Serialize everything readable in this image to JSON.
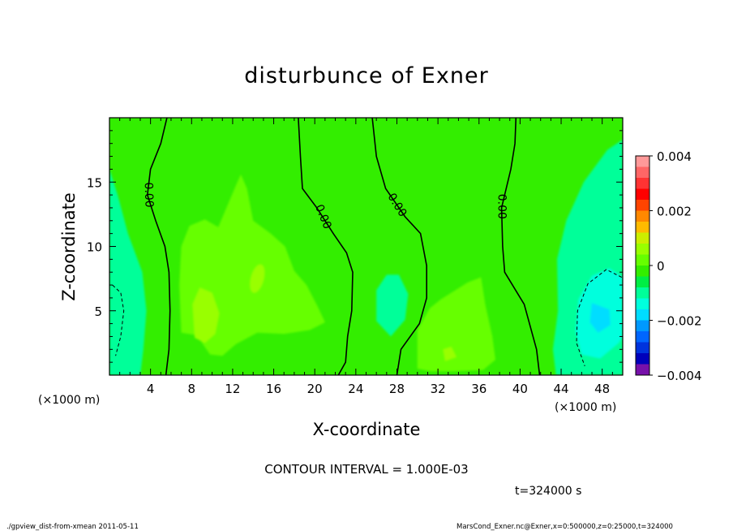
{
  "chart_data": {
    "type": "heatmap",
    "title": "disturbunce of Exner",
    "xlabel": "X-coordinate",
    "ylabel": "Z-coordinate",
    "x_unit_label": "(×1000 m)",
    "y_unit_label": "(×1000 m)",
    "xlim": [
      0,
      50
    ],
    "ylim": [
      0,
      20
    ],
    "x_ticks": [
      4,
      8,
      12,
      16,
      20,
      24,
      28,
      32,
      36,
      40,
      44,
      48
    ],
    "y_ticks": [
      5,
      10,
      15
    ],
    "contour_interval_text": "CONTOUR INTERVAL = 1.000E-03",
    "time_text": "t=324000 s",
    "contour_label": "0.00",
    "colorbar": {
      "ticks": [
        "0.004",
        "0.002",
        "0",
        "−0.002",
        "−0.004"
      ],
      "levels": [
        {
          "value": 0.004,
          "color": "#ff9999"
        },
        {
          "value": 0.0035,
          "color": "#ff6666"
        },
        {
          "value": 0.003,
          "color": "#ff3333"
        },
        {
          "value": 0.0025,
          "color": "#ff0000"
        },
        {
          "value": 0.002,
          "color": "#ff4400"
        },
        {
          "value": 0.0015,
          "color": "#ff8800"
        },
        {
          "value": 0.001,
          "color": "#ffbb00"
        },
        {
          "value": 0.0005,
          "color": "#ccee00"
        },
        {
          "value": 0.00025,
          "color": "#99ff00"
        },
        {
          "value": 0.0001,
          "color": "#66ff00"
        },
        {
          "value": 0.0,
          "color": "#33ee00"
        },
        {
          "value": -0.0001,
          "color": "#00ee44"
        },
        {
          "value": -0.0005,
          "color": "#00ff99"
        },
        {
          "value": -0.001,
          "color": "#00ffdd"
        },
        {
          "value": -0.0015,
          "color": "#00ddff"
        },
        {
          "value": -0.002,
          "color": "#0099ff"
        },
        {
          "value": -0.0025,
          "color": "#0066ff"
        },
        {
          "value": -0.003,
          "color": "#0033dd"
        },
        {
          "value": -0.0035,
          "color": "#0000bb"
        },
        {
          "value": -0.004,
          "color": "#7711aa"
        }
      ]
    },
    "regions": [
      {
        "id": "base-field",
        "level": 0.0
      },
      {
        "id": "left-edge-cool",
        "level": -0.0005
      },
      {
        "id": "right-edge-cool",
        "level": -0.0005
      },
      {
        "id": "right-edge-core",
        "level": -0.001
      },
      {
        "id": "right-edge-center",
        "level": -0.0015
      },
      {
        "id": "left-center-warm",
        "level": 0.0001
      },
      {
        "id": "left-center-warmer",
        "level": 0.00025
      },
      {
        "id": "mid-cool-patch",
        "level": -0.0005
      },
      {
        "id": "right-center-warm",
        "level": 0.0001
      },
      {
        "id": "right-center-warmer",
        "level": 0.00025
      }
    ],
    "zero_contours": [
      {
        "label_at": [
          3.8,
          14.0
        ],
        "points": [
          [
            5.5,
            0
          ],
          [
            5.8,
            2
          ],
          [
            5.9,
            5
          ],
          [
            5.8,
            8
          ],
          [
            5.4,
            10
          ],
          [
            4.5,
            12
          ],
          [
            3.7,
            14
          ],
          [
            4.0,
            16
          ],
          [
            5.0,
            18
          ],
          [
            5.6,
            20
          ]
        ]
      },
      {
        "label_at": [
          20.8,
          12.3
        ],
        "points": [
          [
            22.3,
            0
          ],
          [
            23.0,
            1
          ],
          [
            23.2,
            3
          ],
          [
            23.6,
            5
          ],
          [
            23.7,
            8
          ],
          [
            23.1,
            9.5
          ],
          [
            21.8,
            11
          ],
          [
            20.2,
            13
          ],
          [
            18.8,
            14.5
          ],
          [
            18.6,
            17
          ],
          [
            18.4,
            20
          ]
        ]
      },
      {
        "label_at": [
          28.0,
          13.2
        ],
        "points": [
          [
            28.0,
            0
          ],
          [
            28.4,
            2
          ],
          [
            30.2,
            4
          ],
          [
            30.9,
            6
          ],
          [
            30.9,
            8.5
          ],
          [
            30.3,
            11
          ],
          [
            28.8,
            12.3
          ],
          [
            26.9,
            14.5
          ],
          [
            26.0,
            17
          ],
          [
            25.6,
            20
          ]
        ]
      },
      {
        "label_at": [
          38.2,
          13.1
        ],
        "points": [
          [
            41.9,
            0
          ],
          [
            41.6,
            2
          ],
          [
            40.4,
            5.5
          ],
          [
            38.5,
            8
          ],
          [
            38.3,
            10
          ],
          [
            38.2,
            13
          ],
          [
            39.1,
            16
          ],
          [
            39.5,
            18
          ],
          [
            39.6,
            20
          ]
        ]
      }
    ],
    "dashed_contours": [
      {
        "points": [
          [
            0.3,
            7.0
          ],
          [
            1.1,
            6.4
          ],
          [
            1.4,
            5
          ],
          [
            1.1,
            3
          ],
          [
            0.6,
            1.5
          ]
        ]
      },
      {
        "points": [
          [
            49.9,
            7.6
          ],
          [
            48.4,
            8.2
          ],
          [
            46.6,
            7.1
          ],
          [
            45.6,
            5
          ],
          [
            45.5,
            2.5
          ],
          [
            46.3,
            0.7
          ]
        ]
      }
    ],
    "footer_left": "./gpview_dist-from-xmean  2011-05-11",
    "footer_right": "MarsCond_Exner.nc@Exner,x=0:500000,z=0:25000,t=324000"
  }
}
